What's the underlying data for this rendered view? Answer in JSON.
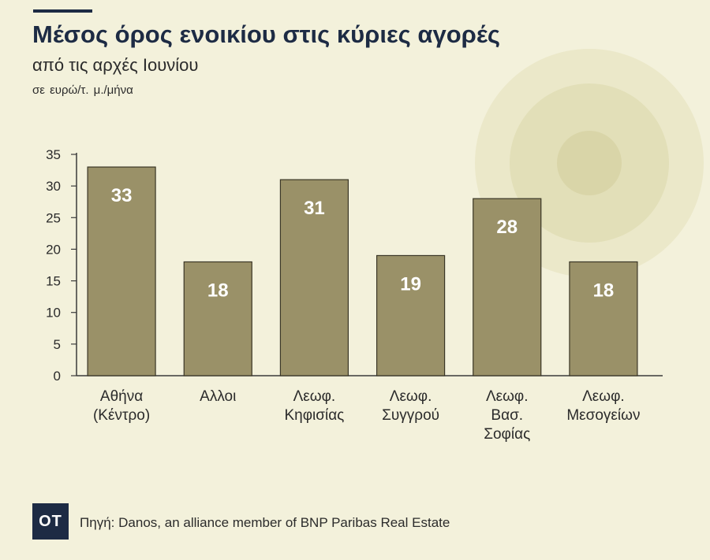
{
  "title": "Μέσος όρος ενοικίου στις κύριες αγορές",
  "subtitle": "από τις αρχές Ιουνίου",
  "unit_label": "σε ευρώ/τ. μ./μήνα",
  "logo_text": "ΟΤ",
  "source": {
    "label": "Πηγή:",
    "text": "Danos, an alliance member of BNP Paribas Real Estate"
  },
  "colors": {
    "background": "#f3f1db",
    "bar": "#9a9168",
    "bar_stroke": "#3a3626",
    "title": "#1d2b44",
    "decor_outer": "#ebe8c9",
    "decor_mid": "#e2dfb8",
    "decor_inner": "#d9d5a8"
  },
  "chart_data": {
    "type": "bar",
    "categories": [
      [
        "Αθήνα",
        "(Κέντρο)"
      ],
      [
        "Αλλοι"
      ],
      [
        "Λεωφ.",
        "Κηφισίας"
      ],
      [
        "Λεωφ.",
        "Συγγρού"
      ],
      [
        "Λεωφ.",
        "Βασ.",
        "Σοφίας"
      ],
      [
        "Λεωφ.",
        "Μεσογείων"
      ]
    ],
    "values": [
      33,
      18,
      31,
      19,
      28,
      18
    ],
    "data_labels": [
      "33",
      "18",
      "31",
      "19",
      "28",
      "18"
    ],
    "yticks": [
      "0",
      "5",
      "10",
      "15",
      "20",
      "25",
      "30",
      "35"
    ],
    "ylim": [
      0,
      35
    ],
    "grid": false,
    "legend": "none"
  }
}
